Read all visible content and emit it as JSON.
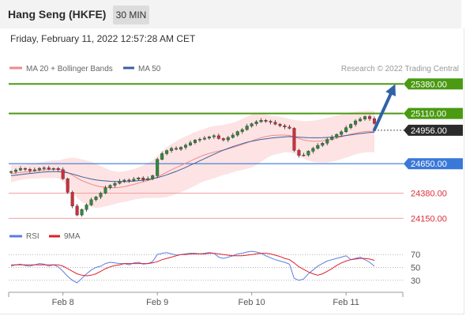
{
  "header": {
    "title": "Hang Seng (HKFE)",
    "timeframe": "30 MIN"
  },
  "datetime": "Friday, February 11, 2022 12:57:28 AM CET",
  "legend": {
    "bollinger": "MA 20 + Bollinger Bands",
    "ma50": "MA 50",
    "credit": "Research © 2022 Trading Central"
  },
  "rsi_legend": {
    "rsi": "RSI",
    "ma9": "9MA"
  },
  "colors": {
    "up": "#2e8b3a",
    "down": "#d42b3a",
    "ma20": "#f08a8a",
    "bands": "#fde0e0",
    "ma50": "#3b5fa0",
    "green_level": "#4a9a12",
    "blue_level": "#3a78d8",
    "red_level": "#f2a0a0",
    "current": "#2b2b2b",
    "arrow": "#2f62a8",
    "rsi": "#5a7ee0",
    "rsi_ma": "#e0202a"
  },
  "chart_data": {
    "type": "candlestick",
    "title": "Hang Seng (HKFE)",
    "timeframe": "30 MIN",
    "ylim": [
      24080,
      25440
    ],
    "x_labels": [
      "Feb 8",
      "Feb 9",
      "Feb 10",
      "Feb 11"
    ],
    "x_label_index": [
      11,
      31,
      51,
      71
    ],
    "levels": [
      {
        "value": 25380,
        "label": "25380.00",
        "kind": "resistance"
      },
      {
        "value": 25110,
        "label": "25110.00",
        "kind": "resistance"
      },
      {
        "value": 24956,
        "label": "24956.00",
        "kind": "current"
      },
      {
        "value": 24650,
        "label": "24650.00",
        "kind": "pivot"
      },
      {
        "value": 24380,
        "label": "24380.00",
        "kind": "support"
      },
      {
        "value": 24150,
        "label": "24150.00",
        "kind": "support"
      }
    ],
    "arrow": {
      "from_index": 77,
      "from_value": 24960,
      "to_index": 81,
      "to_value": 25340
    },
    "closes": [
      24578,
      24592,
      24606,
      24598,
      24586,
      24594,
      24608,
      24612,
      24600,
      24606,
      24596,
      24512,
      24388,
      24262,
      24180,
      24230,
      24272,
      24320,
      24346,
      24380,
      24430,
      24452,
      24470,
      24490,
      24500,
      24496,
      24508,
      24520,
      24504,
      24514,
      24540,
      24690,
      24742,
      24770,
      24790,
      24782,
      24800,
      24820,
      24842,
      24866,
      24874,
      24884,
      24896,
      24906,
      24880,
      24868,
      24890,
      24912,
      24944,
      24962,
      24995,
      25016,
      25034,
      25048,
      25038,
      25030,
      25012,
      24998,
      24986,
      24974,
      24772,
      24726,
      24730,
      24764,
      24790,
      24818,
      24838,
      24872,
      24894,
      24918,
      24942,
      24980,
      25010,
      25042,
      25058,
      25082,
      25062,
      25018
    ],
    "ma20": [
      24560,
      24565,
      24570,
      24574,
      24578,
      24582,
      24588,
      24594,
      24596,
      24600,
      24598,
      24590,
      24570,
      24545,
      24518,
      24495,
      24478,
      24462,
      24448,
      24440,
      24434,
      24430,
      24430,
      24434,
      24440,
      24450,
      24460,
      24472,
      24484,
      24496,
      24508,
      24528,
      24550,
      24572,
      24594,
      24614,
      24634,
      24654,
      24674,
      24694,
      24714,
      24730,
      24744,
      24756,
      24766,
      24776,
      24786,
      24798,
      24812,
      24826,
      24842,
      24858,
      24874,
      24888,
      24898,
      24906,
      24910,
      24912,
      24912,
      24908,
      24896,
      24880,
      24868,
      24860,
      24856,
      24856,
      24860,
      24866,
      24874,
      24884,
      24896,
      24908,
      24920,
      24930,
      24938,
      24944,
      24946,
      24944
    ],
    "bb_upper": [
      24640,
      24640,
      24640,
      24640,
      24645,
      24650,
      24660,
      24668,
      24675,
      24680,
      24680,
      24690,
      24700,
      24705,
      24700,
      24690,
      24680,
      24668,
      24650,
      24630,
      24610,
      24590,
      24580,
      24575,
      24580,
      24590,
      24600,
      24615,
      24635,
      24655,
      24680,
      24720,
      24760,
      24800,
      24830,
      24855,
      24880,
      24900,
      24920,
      24940,
      24955,
      24970,
      24985,
      24995,
      25000,
      25005,
      25015,
      25025,
      25040,
      25060,
      25080,
      25100,
      25110,
      25110,
      25100,
      25090,
      25085,
      25080,
      25070,
      25060,
      25050,
      25045,
      25040,
      25040,
      25045,
      25050,
      25060,
      25070,
      25080,
      25090,
      25100,
      25110,
      25120,
      25125,
      25130,
      25135,
      25135,
      25135
    ],
    "bb_lower": [
      24480,
      24490,
      24500,
      24508,
      24511,
      24514,
      24516,
      24520,
      24517,
      24520,
      24516,
      24490,
      24440,
      24385,
      24336,
      24300,
      24276,
      24256,
      24246,
      24250,
      24258,
      24270,
      24280,
      24293,
      24300,
      24310,
      24320,
      24329,
      24333,
      24337,
      24336,
      24336,
      24340,
      24344,
      24358,
      24373,
      24388,
      24408,
      24428,
      24448,
      24473,
      24490,
      24503,
      24517,
      24532,
      24547,
      24557,
      24571,
      24584,
      24592,
      24604,
      24616,
      24638,
      24666,
      24696,
      24722,
      24735,
      24744,
      24754,
      24756,
      24742,
      24715,
      24696,
      24680,
      24667,
      24662,
      24660,
      24662,
      24668,
      24678,
      24692,
      24706,
      24720,
      24735,
      24746,
      24753,
      24757,
      24753
    ],
    "ma50": [
      24540,
      24545,
      24550,
      24555,
      24560,
      24565,
      24570,
      24574,
      24576,
      24578,
      24578,
      24574,
      24566,
      24555,
      24543,
      24530,
      24520,
      24510,
      24502,
      24496,
      24492,
      24489,
      24487,
      24486,
      24486,
      24487,
      24490,
      24494,
      24499,
      24505,
      24512,
      24522,
      24534,
      24548,
      24564,
      24580,
      24598,
      24616,
      24636,
      24656,
      24676,
      24696,
      24716,
      24736,
      24756,
      24774,
      24790,
      24806,
      24820,
      24834,
      24846,
      24856,
      24864,
      24872,
      24878,
      24884,
      24888,
      24892,
      24895,
      24898,
      24896,
      24893,
      24890,
      24888,
      24887,
      24887,
      24888,
      24890,
      24893,
      24897,
      24902,
      24908,
      24914,
      24920,
      24926,
      24931,
      24936,
      24938
    ],
    "rsi": [
      52,
      54,
      55,
      53,
      52,
      54,
      56,
      55,
      52,
      54,
      51,
      44,
      36,
      30,
      26,
      33,
      40,
      46,
      50,
      52,
      56,
      58,
      57,
      56,
      56,
      54,
      57,
      58,
      55,
      56,
      59,
      70,
      72,
      73,
      71,
      69,
      70,
      71,
      72,
      72,
      71,
      72,
      73,
      72,
      66,
      64,
      66,
      68,
      71,
      72,
      74,
      75,
      74,
      72,
      68,
      65,
      62,
      60,
      58,
      55,
      33,
      30,
      32,
      40,
      46,
      52,
      56,
      60,
      62,
      64,
      66,
      68,
      62,
      64,
      66,
      62,
      58,
      52
    ],
    "rsi_ma": [
      54,
      54,
      54,
      54,
      54,
      54,
      54,
      54,
      54,
      54,
      54,
      52,
      48,
      44,
      40,
      38,
      37,
      38,
      40,
      44,
      48,
      51,
      53,
      54,
      56,
      56,
      56,
      56,
      56,
      56,
      57,
      59,
      62,
      64,
      66,
      68,
      70,
      70,
      71,
      71,
      71,
      71,
      72,
      72,
      71,
      70,
      69,
      68,
      68,
      68,
      69,
      70,
      71,
      72,
      72,
      71,
      69,
      67,
      64,
      62,
      57,
      51,
      47,
      43,
      40,
      38,
      40,
      44,
      48,
      53,
      57,
      60,
      62,
      63,
      64,
      64,
      63,
      61
    ],
    "rsi_levels": [
      70,
      50,
      30
    ],
    "rsi_ylim": [
      15,
      85
    ],
    "rsi_labels": [
      "70",
      "50",
      "30"
    ]
  }
}
